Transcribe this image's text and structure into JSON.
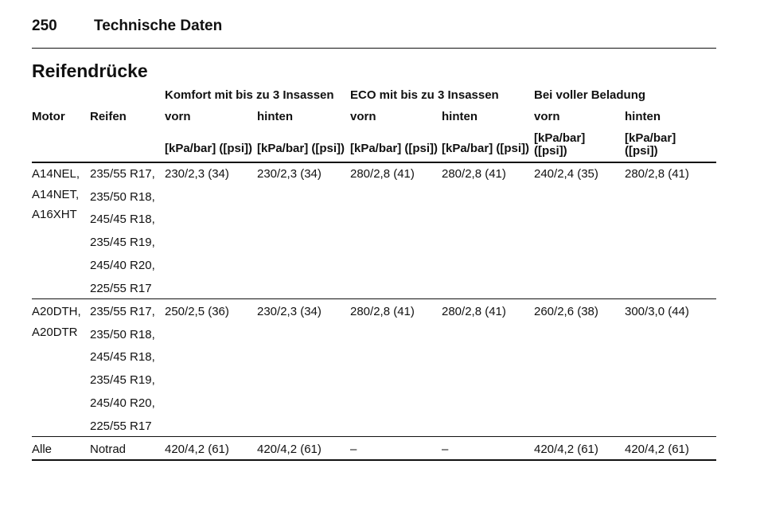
{
  "header": {
    "page_number": "250",
    "title": "Technische Daten"
  },
  "section_title": "Reifendrücke",
  "table": {
    "group_headers": [
      "Komfort mit bis zu 3 Insassen",
      "ECO mit bis zu 3 Insassen",
      "Bei voller Beladung"
    ],
    "columns": [
      "Motor",
      "Reifen",
      "vorn",
      "hinten",
      "vorn",
      "hinten",
      "vorn",
      "hinten"
    ],
    "units": [
      "[kPa/bar] ([psi])",
      "[kPa/bar] ([psi])",
      "[kPa/bar] ([psi])",
      "[kPa/bar] ([psi])",
      "[kPa/bar] ([psi])",
      "[kPa/bar] ([psi])"
    ],
    "rows": [
      {
        "motor": [
          "A14NEL,",
          "A14NET,",
          "A16XHT"
        ],
        "tyres": [
          "235/55 R17,",
          "235/50 R18,",
          "245/45 R18,",
          "235/45 R19,",
          "245/40 R20,",
          "225/55 R17"
        ],
        "values": [
          "230/2,3 (34)",
          "230/2,3 (34)",
          "280/2,8 (41)",
          "280/2,8 (41)",
          "240/2,4 (35)",
          "280/2,8 (41)"
        ]
      },
      {
        "motor": [
          "A20DTH,",
          "A20DTR"
        ],
        "tyres": [
          "235/55 R17,",
          "235/50 R18,",
          "245/45 R18,",
          "235/45 R19,",
          "245/40 R20,",
          "225/55 R17"
        ],
        "values": [
          "250/2,5 (36)",
          "230/2,3 (34)",
          "280/2,8 (41)",
          "280/2,8 (41)",
          "260/2,6 (38)",
          "300/3,0 (44)"
        ]
      },
      {
        "motor": [
          "Alle"
        ],
        "tyres": [
          "Notrad"
        ],
        "values": [
          "420/4,2 (61)",
          "420/4,2 (61)",
          "–",
          "–",
          "420/4,2 (61)",
          "420/4,2 (61)"
        ]
      }
    ]
  }
}
